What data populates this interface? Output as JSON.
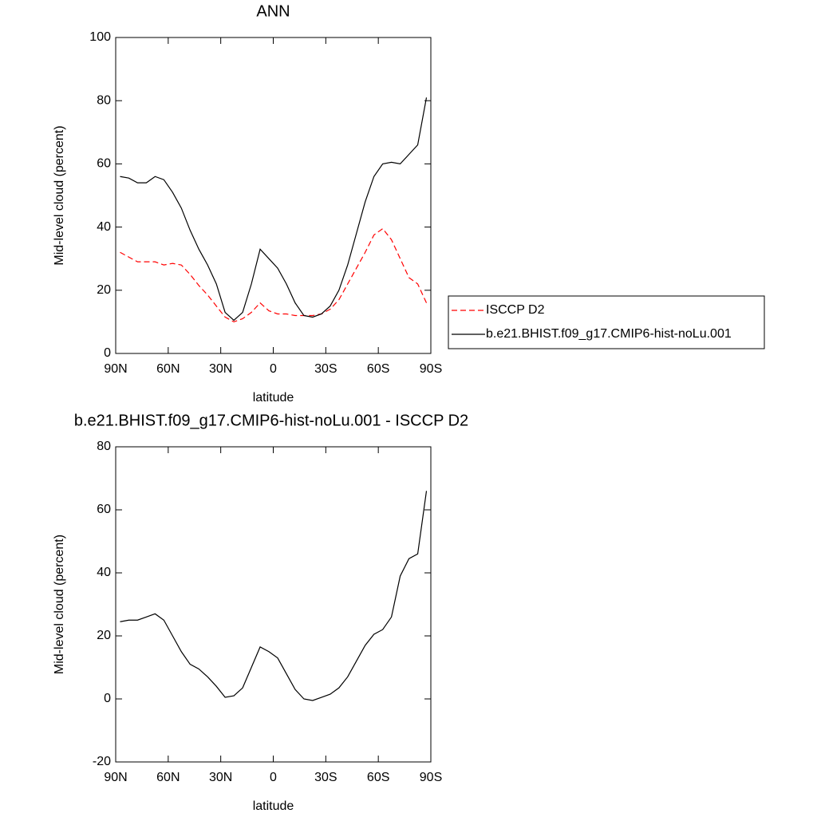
{
  "chart_data": [
    {
      "type": "line",
      "title": "ANN",
      "x_label": "latitude",
      "y_label": "Mid-level cloud (percent)",
      "x": [
        87.5,
        82.5,
        77.5,
        72.5,
        67.5,
        62.5,
        57.5,
        52.5,
        47.5,
        42.5,
        37.5,
        32.5,
        27.5,
        22.5,
        17.5,
        12.5,
        7.5,
        2.5,
        -2.5,
        -7.5,
        -12.5,
        -17.5,
        -22.5,
        -27.5,
        -32.5,
        -37.5,
        -42.5,
        -47.5,
        -52.5,
        -57.5,
        -62.5,
        -67.5,
        -72.5,
        -77.5,
        -82.5,
        -87.5
      ],
      "series": [
        {
          "name": "ISCCP D2",
          "color": "#ff0000",
          "dash": true,
          "values": [
            32,
            30.5,
            29,
            29,
            29,
            28,
            28.5,
            28,
            25,
            21.5,
            18.5,
            15,
            11.5,
            10,
            11,
            13,
            16,
            13.5,
            12.5,
            12.5,
            12,
            12,
            12,
            12.5,
            14,
            17,
            22,
            27,
            32,
            37.5,
            39.5,
            36,
            30,
            24,
            22,
            16
          ]
        },
        {
          "name": "b.e21.BHIST.f09_g17.CMIP6-hist-noLu.001",
          "color": "#000000",
          "dash": false,
          "values": [
            56,
            55.5,
            54,
            54,
            56,
            55,
            51,
            46,
            39,
            33,
            28,
            22,
            13,
            10.5,
            13,
            22,
            33,
            30,
            27,
            22,
            16,
            12,
            11.5,
            12.5,
            15,
            20,
            28,
            38,
            48,
            56,
            60,
            60.5,
            60,
            63,
            66,
            81
          ]
        }
      ],
      "xlim": [
        90,
        -90
      ],
      "xticks": [
        {
          "value": 90,
          "label": "90N"
        },
        {
          "value": 60,
          "label": "60N"
        },
        {
          "value": 30,
          "label": "30N"
        },
        0,
        {
          "value": -30,
          "label": "30S"
        },
        {
          "value": -60,
          "label": "60S"
        },
        {
          "value": -90,
          "label": "90S"
        }
      ],
      "ylim": [
        0,
        100
      ],
      "yticks": [
        0,
        20,
        40,
        60,
        80,
        100
      ],
      "legend": true
    },
    {
      "type": "line",
      "title": "b.e21.BHIST.f09_g17.CMIP6-hist-noLu.001 - ISCCP D2",
      "x_label": "latitude",
      "y_label": "Mid-level cloud (percent)",
      "x": [
        87.5,
        82.5,
        77.5,
        72.5,
        67.5,
        62.5,
        57.5,
        52.5,
        47.5,
        42.5,
        37.5,
        32.5,
        27.5,
        22.5,
        17.5,
        12.5,
        7.5,
        2.5,
        -2.5,
        -7.5,
        -12.5,
        -17.5,
        -22.5,
        -27.5,
        -32.5,
        -37.5,
        -42.5,
        -47.5,
        -52.5,
        -57.5,
        -62.5,
        -67.5,
        -72.5,
        -77.5,
        -82.5,
        -87.5
      ],
      "series": [
        {
          "color": "#000000",
          "dash": false,
          "values": [
            24.5,
            25,
            25,
            26,
            27,
            25,
            20,
            15,
            11,
            9.5,
            7,
            4,
            0.5,
            1,
            3.5,
            10,
            16.5,
            15,
            13,
            8,
            3,
            0,
            -0.5,
            0.5,
            1.5,
            3.5,
            7,
            12,
            17,
            20.5,
            22,
            26,
            39,
            44.5,
            46,
            66
          ]
        }
      ],
      "xlim": [
        90,
        -90
      ],
      "xticks": [
        {
          "value": 90,
          "label": "90N"
        },
        {
          "value": 60,
          "label": "60N"
        },
        {
          "value": 30,
          "label": "30N"
        },
        0,
        {
          "value": -30,
          "label": "30S"
        },
        {
          "value": -60,
          "label": "60S"
        },
        {
          "value": -90,
          "label": "90S"
        }
      ],
      "ylim": [
        -20,
        80
      ],
      "yticks": [
        -20,
        0,
        20,
        40,
        60,
        80
      ],
      "legend": false
    }
  ]
}
